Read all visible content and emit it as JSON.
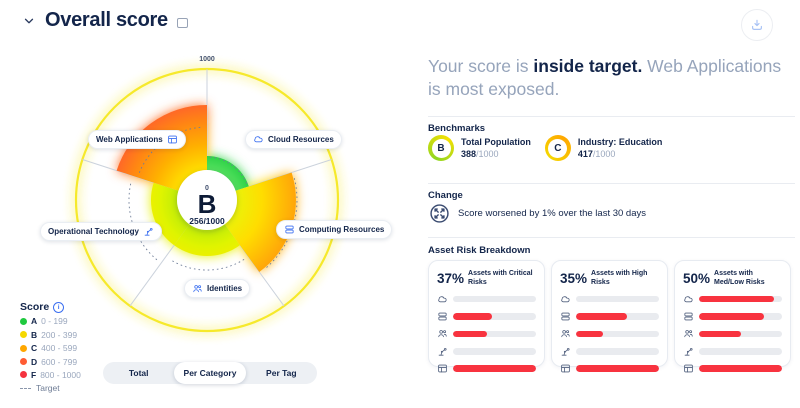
{
  "header": {
    "title": "Overall score"
  },
  "headline": {
    "prefix": "Your score is ",
    "highlight": "inside target.",
    "suffix": " Web Applications is most exposed."
  },
  "gauge": {
    "ring_color": "#F6E92B",
    "axis_max_label": "1000",
    "axis_min_label": "0",
    "center_grade": "B",
    "center_score": "256/1000",
    "gradients": {
      "green": {
        "r": 50,
        "stops": [
          [
            0.55,
            "#5CE463"
          ],
          [
            1,
            "#1ECB3E"
          ]
        ]
      },
      "yellowOrange": {
        "r": 92,
        "stops": [
          [
            0.3,
            "#E9F50A"
          ],
          [
            0.6,
            "#FFDD00"
          ],
          [
            1,
            "#FFA00A"
          ]
        ]
      },
      "greenYellow": {
        "r": 62,
        "stops": [
          [
            0.35,
            "#AFE80E"
          ],
          [
            0.75,
            "#DFF400"
          ],
          [
            1,
            "#F2EE00"
          ]
        ]
      },
      "orangeRed": {
        "r": 100,
        "stops": [
          [
            0.3,
            "#FFE100"
          ],
          [
            0.55,
            "#FFB000"
          ],
          [
            0.8,
            "#FF8414"
          ],
          [
            1,
            "#FF5F2E"
          ]
        ]
      }
    },
    "categories": [
      {
        "label": "Cloud Resources",
        "icon": "cloud-icon",
        "start": 0,
        "end": 72,
        "value_r": 44,
        "target_r": 43,
        "gradient": "green"
      },
      {
        "label": "Computing Resources",
        "icon": "server-icon",
        "start": 72,
        "end": 144,
        "value_r": 89,
        "target_r": 90,
        "gradient": "yellowOrange"
      },
      {
        "label": "Identities",
        "icon": "people-icon",
        "start": 144,
        "end": 216,
        "value_r": 56,
        "target_r": 70,
        "gradient": "greenYellow"
      },
      {
        "label": "Operational Technology",
        "icon": "robot-icon",
        "start": 216,
        "end": 288,
        "value_r": 56,
        "target_r": 78,
        "gradient": "greenYellow"
      },
      {
        "label": "Web Applications",
        "icon": "window-icon",
        "start": 288,
        "end": 360,
        "value_r": 95,
        "target_r": 73,
        "gradient": "orangeRed"
      }
    ]
  },
  "legend": {
    "title": "Score",
    "items": [
      {
        "grade": "A",
        "range": "0 - 199",
        "color": "#1FC93F"
      },
      {
        "grade": "B",
        "range": "200 - 399",
        "color": "#F5D800"
      },
      {
        "grade": "C",
        "range": "400 - 599",
        "color": "#FFA700"
      },
      {
        "grade": "D",
        "range": "600 - 799",
        "color": "#FF5C33"
      },
      {
        "grade": "F",
        "range": "800 - 1000",
        "color": "#F5333F"
      }
    ],
    "target_label": "Target"
  },
  "tabs": [
    {
      "label": "Total",
      "active": false
    },
    {
      "label": "Per Category",
      "active": true
    },
    {
      "label": "Per Tag",
      "active": false
    }
  ],
  "benchmarks": {
    "title": "Benchmarks",
    "items": [
      {
        "grade": "B",
        "label": "Total Population",
        "score": "388",
        "total": "/1000",
        "ring": [
          "#8FD622",
          "#F5E003"
        ]
      },
      {
        "grade": "C",
        "label": "Industry: Education",
        "score": "417",
        "total": "/1000",
        "ring": [
          "#FFA700",
          "#F5D800"
        ]
      }
    ]
  },
  "change": {
    "title": "Change",
    "text": "Score worsened by 1% over the last 30 days"
  },
  "risk_breakdown": {
    "title": "Asset Risk Breakdown",
    "bar_color": "#F8333F",
    "cards": [
      {
        "percent": "37%",
        "label": "Assets with Critical Risks",
        "rows": [
          {
            "icon": "cloud-icon",
            "fill": 0
          },
          {
            "icon": "server-icon",
            "fill": 0.47
          },
          {
            "icon": "people-icon",
            "fill": 0.41
          },
          {
            "icon": "robot-icon",
            "fill": 0
          },
          {
            "icon": "window-icon",
            "fill": 1
          }
        ]
      },
      {
        "percent": "35%",
        "label": "Assets with High Risks",
        "rows": [
          {
            "icon": "cloud-icon",
            "fill": 0
          },
          {
            "icon": "server-icon",
            "fill": 0.62
          },
          {
            "icon": "people-icon",
            "fill": 0.33
          },
          {
            "icon": "robot-icon",
            "fill": 0
          },
          {
            "icon": "window-icon",
            "fill": 1
          }
        ]
      },
      {
        "percent": "50%",
        "label": "Assets with\nMed/Low Risks",
        "rows": [
          {
            "icon": "cloud-icon",
            "fill": 0.9
          },
          {
            "icon": "server-icon",
            "fill": 0.78
          },
          {
            "icon": "people-icon",
            "fill": 0.5
          },
          {
            "icon": "robot-icon",
            "fill": 0
          },
          {
            "icon": "window-icon",
            "fill": 1
          }
        ]
      }
    ]
  }
}
